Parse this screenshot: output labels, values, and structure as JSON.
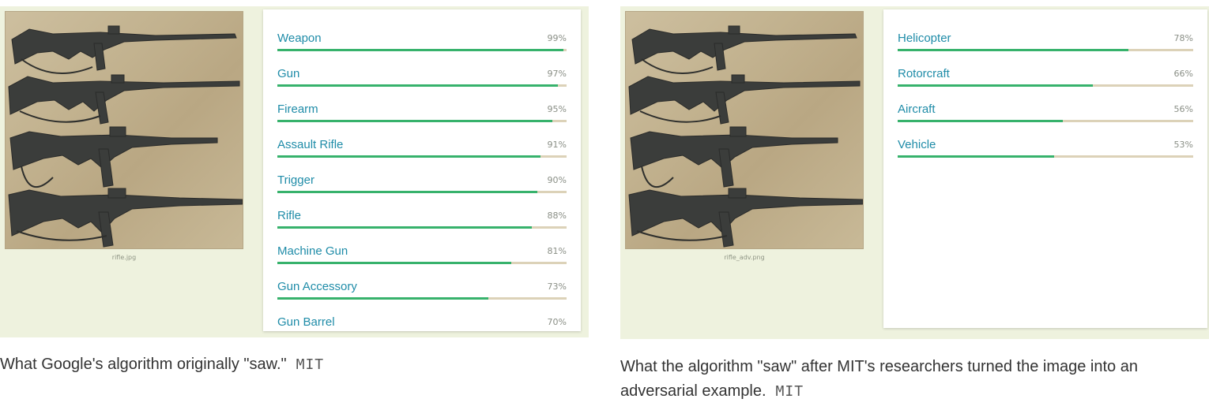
{
  "left": {
    "filename": "rifle.jpg",
    "labels": [
      {
        "name": "Weapon",
        "score": "99%",
        "value": 0.99
      },
      {
        "name": "Gun",
        "score": "97%",
        "value": 0.97
      },
      {
        "name": "Firearm",
        "score": "95%",
        "value": 0.95
      },
      {
        "name": "Assault Rifle",
        "score": "91%",
        "value": 0.91
      },
      {
        "name": "Trigger",
        "score": "90%",
        "value": 0.9
      },
      {
        "name": "Rifle",
        "score": "88%",
        "value": 0.88
      },
      {
        "name": "Machine Gun",
        "score": "81%",
        "value": 0.81
      },
      {
        "name": "Gun Accessory",
        "score": "73%",
        "value": 0.73
      },
      {
        "name": "Gun Barrel",
        "score": "70%",
        "value": 0.7
      }
    ],
    "caption": "What Google's algorithm originally \"saw.\"",
    "credit": "MIT"
  },
  "right": {
    "filename": "rifle_adv.png",
    "labels": [
      {
        "name": "Helicopter",
        "score": "78%",
        "value": 0.78
      },
      {
        "name": "Rotorcraft",
        "score": "66%",
        "value": 0.66
      },
      {
        "name": "Aircraft",
        "score": "56%",
        "value": 0.56
      },
      {
        "name": "Vehicle",
        "score": "53%",
        "value": 0.53
      }
    ],
    "caption": "What the algorithm \"saw\" after MIT's researchers turned the image into an adversarial example.",
    "credit": "MIT"
  },
  "colors": {
    "accent_text": "#1f8ca8",
    "bar_fill": "#37b26c",
    "bar_track": "#dcd2b8",
    "frame_bg": "#eef2de"
  }
}
